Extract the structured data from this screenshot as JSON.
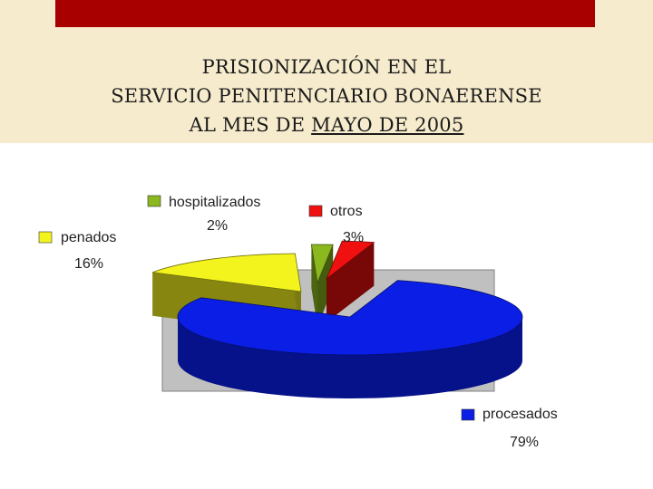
{
  "title": {
    "line1": "PRISIONIZACIÓN EN EL",
    "line2": "SERVICIO PENITENCIARIO BONAERENSE",
    "line3_a": "AL MES DE ",
    "line3_b": "MAYO DE 2005"
  },
  "chart_data": {
    "type": "pie",
    "labels": [
      "procesados",
      "penados",
      "hospitalizados",
      "otros"
    ],
    "values": [
      79,
      16,
      2,
      3
    ],
    "value_labels": [
      "79%",
      "16%",
      "2%",
      "3%"
    ],
    "colors": [
      "#0a1ee6",
      "#f3f31e",
      "#8ab81e",
      "#f01010"
    ],
    "legend": "labels beside slices"
  }
}
